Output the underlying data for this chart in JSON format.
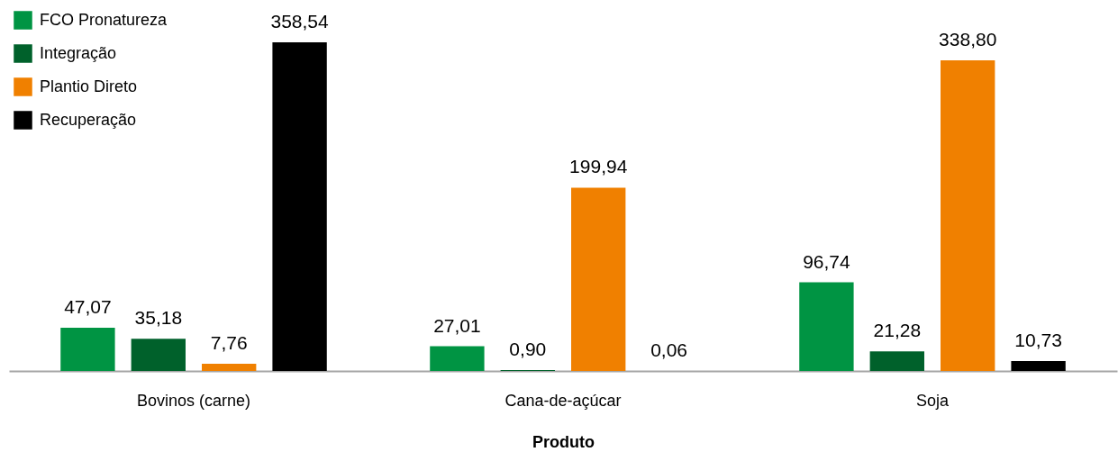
{
  "chart_data": {
    "type": "bar",
    "xlabel": "Produto",
    "categories": [
      "Bovinos (carne)",
      "Cana-de-açúcar",
      "Soja"
    ],
    "series": [
      {
        "name": "FCO Pronatureza",
        "color": "#009443",
        "values": [
          47.07,
          27.01,
          96.74
        ],
        "value_labels": [
          "47,07",
          "27,01",
          "96,74"
        ]
      },
      {
        "name": "Integração",
        "color": "#00612b",
        "values": [
          35.18,
          0.9,
          21.28
        ],
        "value_labels": [
          "35,18",
          "0,90",
          "21,28"
        ]
      },
      {
        "name": "Plantio Direto",
        "color": "#f08000",
        "values": [
          7.76,
          199.94,
          338.8
        ],
        "value_labels": [
          "7,76",
          "199,94",
          "338,80"
        ]
      },
      {
        "name": "Recuperação",
        "color": "#000000",
        "values": [
          358.54,
          0.06,
          10.73
        ],
        "value_labels": [
          "358,54",
          "0,06",
          "10,73"
        ]
      }
    ],
    "legend": "top left",
    "grid": false
  }
}
